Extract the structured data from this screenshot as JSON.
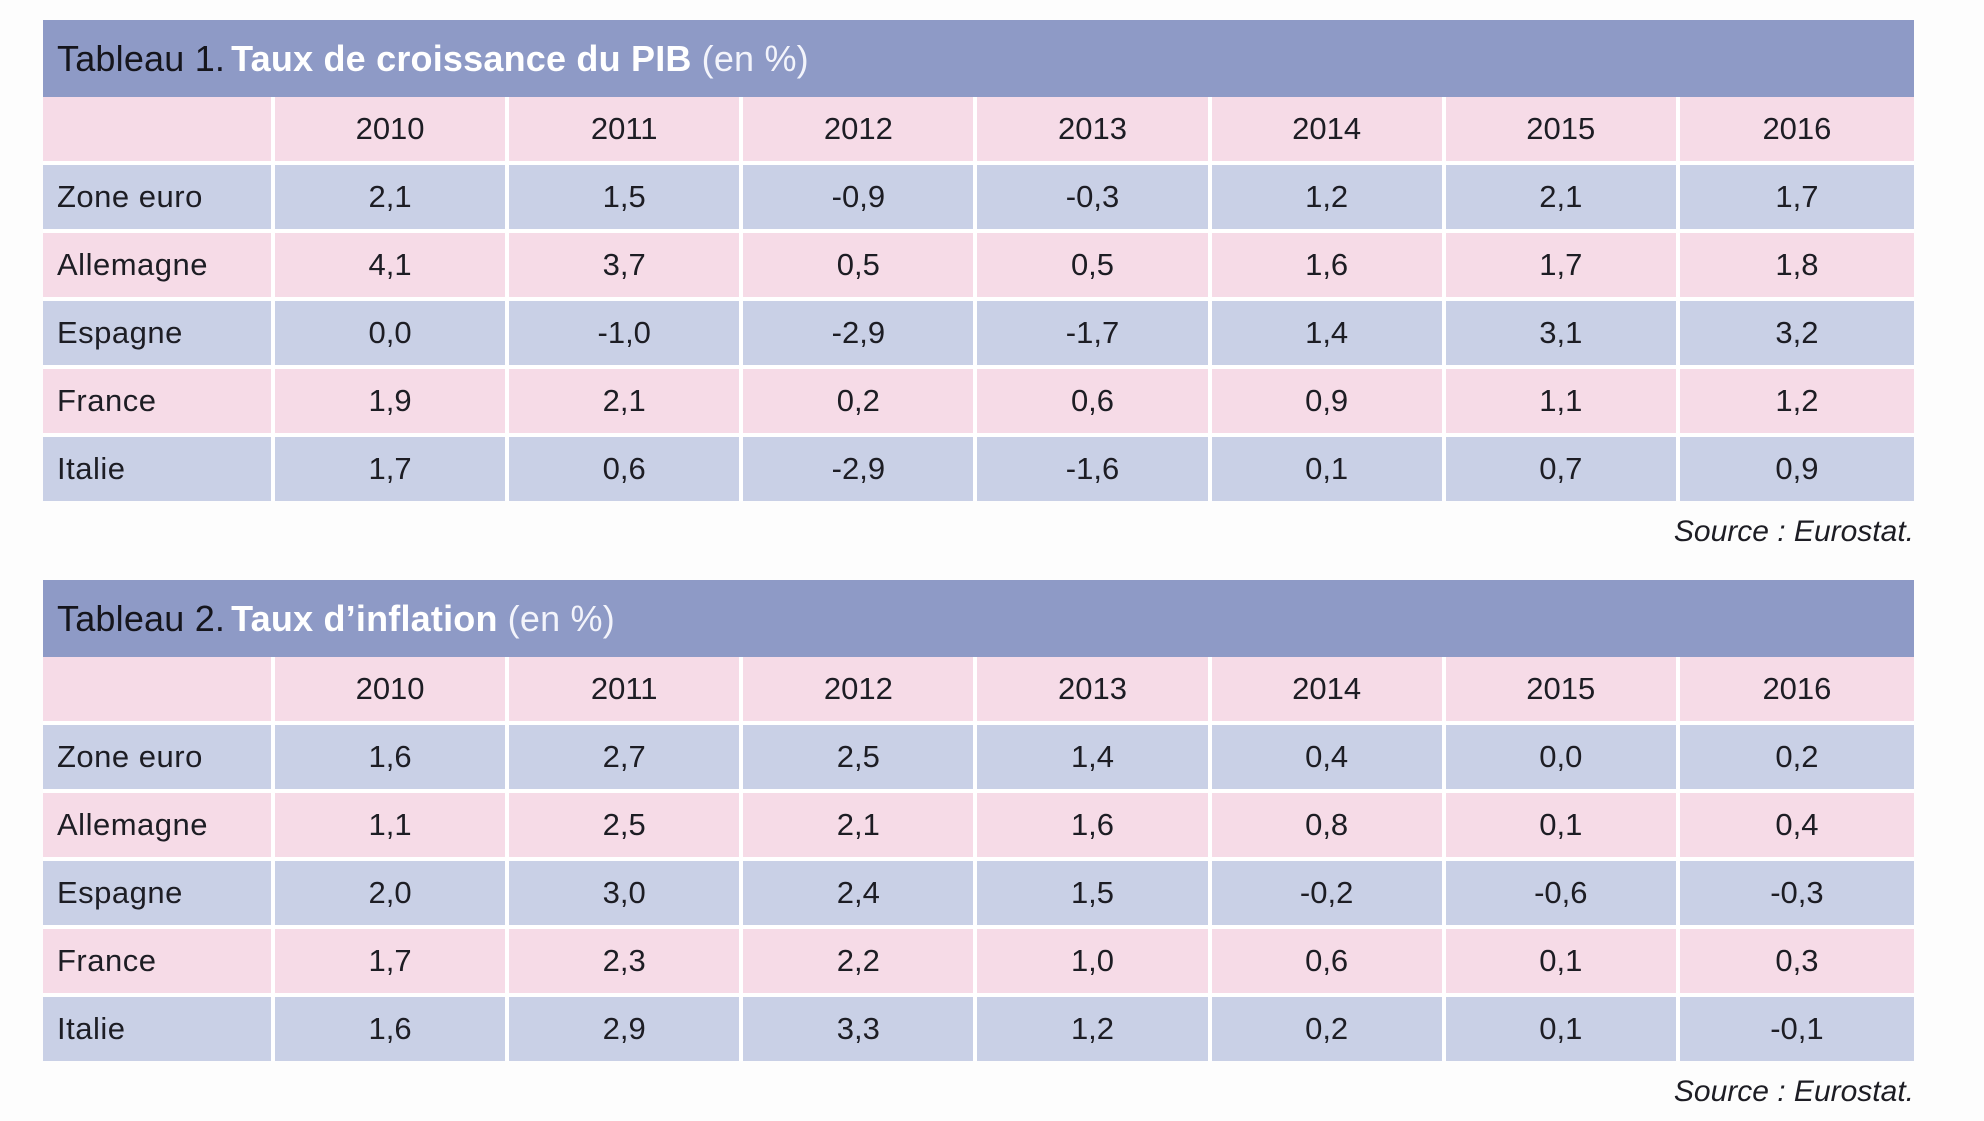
{
  "tables": [
    {
      "title_prefix": "Tableau 1.",
      "title_main": "Taux de croissance du PIB",
      "title_unit": "(en %)",
      "years": [
        "2010",
        "2011",
        "2012",
        "2013",
        "2014",
        "2015",
        "2016"
      ],
      "rows": [
        {
          "country": "Zone euro",
          "values": [
            "2,1",
            "1,5",
            "-0,9",
            "-0,3",
            "1,2",
            "2,1",
            "1,7"
          ]
        },
        {
          "country": "Allemagne",
          "values": [
            "4,1",
            "3,7",
            "0,5",
            "0,5",
            "1,6",
            "1,7",
            "1,8"
          ]
        },
        {
          "country": "Espagne",
          "values": [
            "0,0",
            "-1,0",
            "-2,9",
            "-1,7",
            "1,4",
            "3,1",
            "3,2"
          ]
        },
        {
          "country": "France",
          "values": [
            "1,9",
            "2,1",
            "0,2",
            "0,6",
            "0,9",
            "1,1",
            "1,2"
          ]
        },
        {
          "country": "Italie",
          "values": [
            "1,7",
            "0,6",
            "-2,9",
            "-1,6",
            "0,1",
            "0,7",
            "0,9"
          ]
        }
      ],
      "source": "Source : Eurostat."
    },
    {
      "title_prefix": "Tableau 2.",
      "title_main": "Taux d’inflation",
      "title_unit": "(en %)",
      "years": [
        "2010",
        "2011",
        "2012",
        "2013",
        "2014",
        "2015",
        "2016"
      ],
      "rows": [
        {
          "country": "Zone euro",
          "values": [
            "1,6",
            "2,7",
            "2,5",
            "1,4",
            "0,4",
            "0,0",
            "0,2"
          ]
        },
        {
          "country": "Allemagne",
          "values": [
            "1,1",
            "2,5",
            "2,1",
            "1,6",
            "0,8",
            "0,1",
            "0,4"
          ]
        },
        {
          "country": "Espagne",
          "values": [
            "2,0",
            "3,0",
            "2,4",
            "1,5",
            "-0,2",
            "-0,6",
            "-0,3"
          ]
        },
        {
          "country": "France",
          "values": [
            "1,7",
            "2,3",
            "2,2",
            "1,0",
            "0,6",
            "0,1",
            "0,3"
          ]
        },
        {
          "country": "Italie",
          "values": [
            "1,6",
            "2,9",
            "3,3",
            "1,2",
            "0,2",
            "0,1",
            "-0,1"
          ]
        }
      ],
      "source": "Source : Eurostat."
    }
  ],
  "colors": {
    "title_bar": "#8e9ac6",
    "row_blue": "#c9d0e6",
    "row_pink": "#f6dbe7"
  }
}
